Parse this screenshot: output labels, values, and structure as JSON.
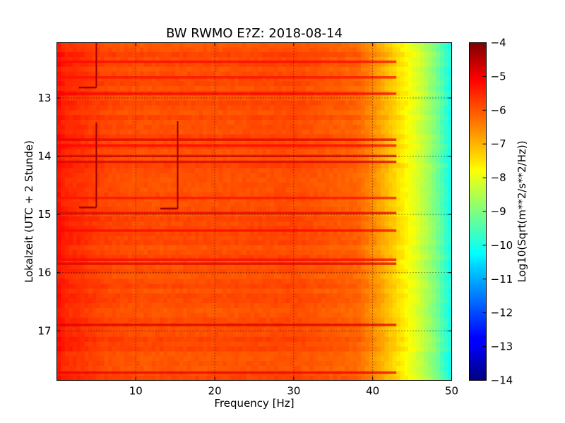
{
  "chart_data": {
    "type": "heatmap",
    "title": "BW RWMO E?Z: 2018-08-14",
    "xlabel": "Frequency [Hz]",
    "ylabel": "Lokalzeit (UTC + 2 Stunde)",
    "colorbar_label": "Log10(Sqrt(m**2/s**2/Hz))",
    "xlim": [
      0,
      50
    ],
    "ylim": [
      17.85,
      12.05
    ],
    "y_inverted": true,
    "x_ticks": [
      10,
      20,
      30,
      40,
      50
    ],
    "x_tick_labels": [
      "10",
      "20",
      "30",
      "40",
      "50"
    ],
    "y_ticks": [
      13,
      14,
      15,
      16,
      17
    ],
    "y_tick_labels": [
      "13",
      "14",
      "15",
      "16",
      "17"
    ],
    "color_range": [
      -14,
      -4
    ],
    "colorbar_ticks": [
      -4,
      -5,
      -6,
      -7,
      -8,
      -9,
      -10,
      -11,
      -12,
      -13,
      -14
    ],
    "colorbar_tick_labels": [
      "−4",
      "−5",
      "−6",
      "−7",
      "−8",
      "−9",
      "−10",
      "−11",
      "−12",
      "−13",
      "−14"
    ],
    "colormap": "jet",
    "grid": "dotted",
    "frequency_profile": {
      "frequency_hz": [
        0,
        1,
        3,
        6,
        10,
        20,
        30,
        38,
        40,
        42,
        44,
        46,
        48,
        49,
        50
      ],
      "level": [
        -5.3,
        -5.6,
        -5.7,
        -5.9,
        -6.0,
        -6.0,
        -5.95,
        -6.2,
        -6.6,
        -7.1,
        -7.6,
        -8.2,
        -9.0,
        -9.6,
        -10.1
      ]
    },
    "time_bands": [
      {
        "time": 12.38,
        "level": -5.3
      },
      {
        "time": 12.65,
        "level": -5.4
      },
      {
        "time": 12.93,
        "level": -5.2
      },
      {
        "time": 13.72,
        "level": -5.0
      },
      {
        "time": 13.82,
        "level": -5.3
      },
      {
        "time": 14.0,
        "level": -5.0
      },
      {
        "time": 14.1,
        "level": -4.9
      },
      {
        "time": 14.72,
        "level": -5.4
      },
      {
        "time": 14.98,
        "level": -5.0
      },
      {
        "time": 15.28,
        "level": -5.3
      },
      {
        "time": 15.78,
        "level": -5.3
      },
      {
        "time": 15.85,
        "level": -4.9
      },
      {
        "time": 16.9,
        "level": -4.9
      },
      {
        "time": 17.72,
        "level": -5.1
      }
    ],
    "low_frequency_features": [
      {
        "frequency_hz": 5.0,
        "time_start": 12.05,
        "time_end": 12.82
      },
      {
        "frequency_hz": 5.0,
        "time_start": 13.42,
        "time_end": 14.88
      },
      {
        "frequency_hz": 15.3,
        "time_start": 13.4,
        "time_end": 14.9
      }
    ]
  }
}
